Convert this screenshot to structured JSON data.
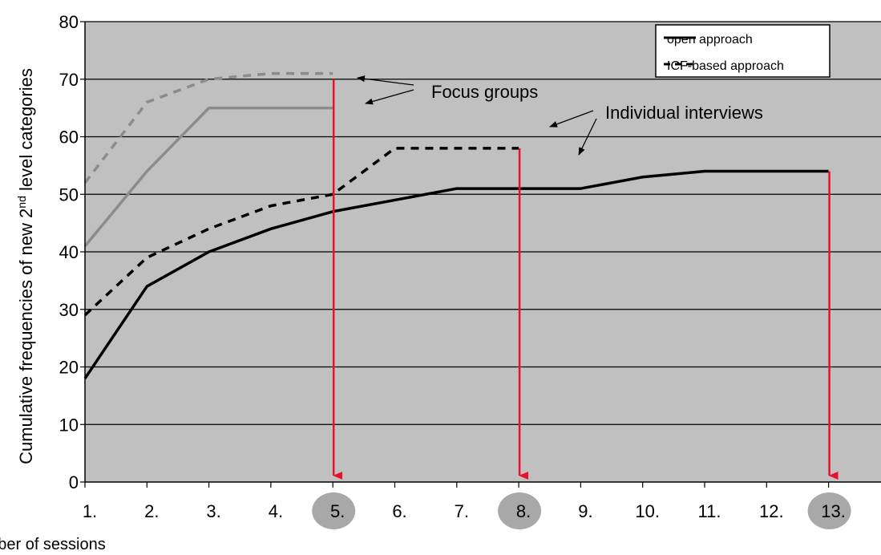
{
  "chart_data": {
    "type": "line",
    "xlabel": "Number of sessions",
    "ylabel": {
      "pre": "Cumulative  frequencies of new  ",
      "sub_main": "2",
      "sub_small": "nd",
      "post": " level categories"
    },
    "categories": [
      "1.",
      "2.",
      "3.",
      "4.",
      "5.",
      "6.",
      "7.",
      "8.",
      "9.",
      "10.",
      "11.",
      "12.",
      "13."
    ],
    "ylim": [
      0,
      80
    ],
    "yticks": [
      0,
      10,
      20,
      30,
      40,
      50,
      60,
      70,
      80
    ],
    "grid": true,
    "legend_position": "top-right",
    "legend": [
      {
        "label": "open approach",
        "style": "solid"
      },
      {
        "label": "ICF-based approach",
        "style": "dashed"
      }
    ],
    "series": [
      {
        "group": "focus",
        "style": "dashed",
        "color": "#8c8c8c",
        "x": [
          1,
          2,
          3,
          4,
          5
        ],
        "values": [
          52,
          66,
          70,
          71,
          71
        ]
      },
      {
        "group": "focus",
        "style": "solid",
        "color": "#8c8c8c",
        "x": [
          1,
          2,
          3,
          4,
          5
        ],
        "values": [
          41,
          54,
          65,
          65,
          65
        ]
      },
      {
        "group": "individual",
        "style": "dashed",
        "color": "#000000",
        "x": [
          1,
          2,
          3,
          4,
          5,
          6,
          7,
          8
        ],
        "values": [
          29,
          39,
          44,
          48,
          50,
          58,
          58,
          58
        ]
      },
      {
        "group": "individual",
        "style": "solid",
        "color": "#000000",
        "x": [
          1,
          2,
          3,
          4,
          5,
          6,
          7,
          8,
          9,
          10,
          11,
          12,
          13
        ],
        "values": [
          18,
          34,
          40,
          44,
          47,
          49,
          51,
          51,
          51,
          53,
          54,
          54,
          54
        ]
      }
    ],
    "annotations": [
      {
        "text": "Focus groups"
      },
      {
        "text": "Individual interviews"
      }
    ],
    "saturation_markers": [
      {
        "x": 5,
        "from_value": 70
      },
      {
        "x": 8,
        "from_value": 58
      },
      {
        "x": 13,
        "from_value": 54
      }
    ],
    "colors": {
      "plot_bg": "#c0c0c0",
      "marker": "#e8102a",
      "highlight": "#a8a8a8"
    }
  }
}
